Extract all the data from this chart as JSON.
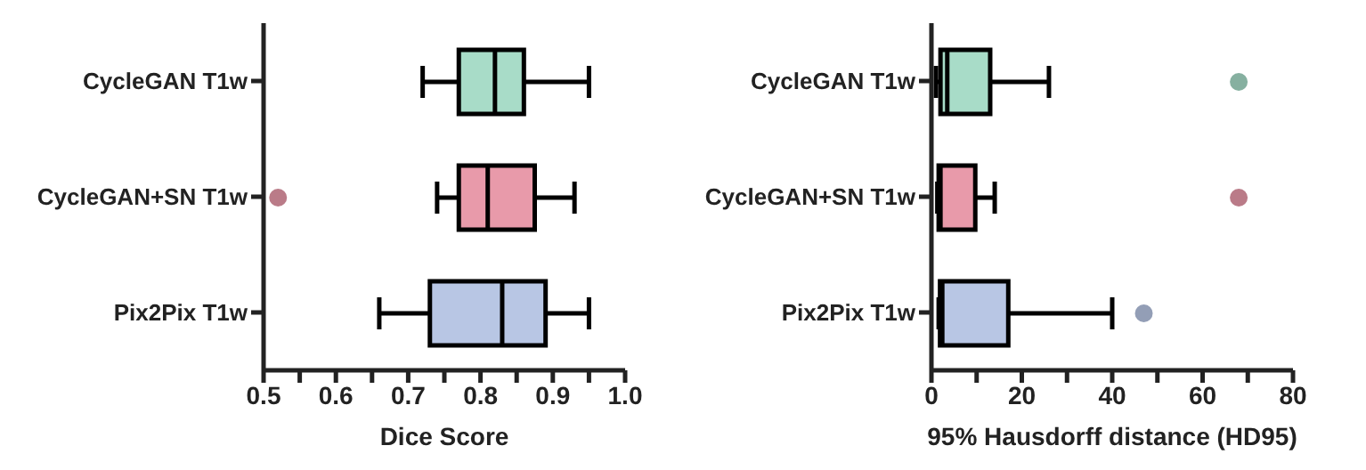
{
  "chart_data": [
    {
      "type": "box",
      "orientation": "horizontal",
      "xlabel": "Dice Score",
      "categories": [
        "CycleGAN T1w",
        "CycleGAN+SN T1w",
        "Pix2Pix T1w"
      ],
      "boxes": [
        {
          "low": 0.72,
          "q1": 0.77,
          "median": 0.82,
          "q3": 0.86,
          "high": 0.95
        },
        {
          "low": 0.74,
          "q1": 0.77,
          "median": 0.81,
          "q3": 0.875,
          "high": 0.93,
          "outliers": [
            0.52
          ]
        },
        {
          "low": 0.66,
          "q1": 0.73,
          "median": 0.83,
          "q3": 0.89,
          "high": 0.95
        }
      ],
      "colors": [
        "#a8dcc8",
        "#e89aaa",
        "#b8c6e4"
      ],
      "xlim": [
        0.5,
        1.0
      ],
      "xticks": [
        0.5,
        {
          "value": 0.55,
          "label": null
        },
        0.6,
        {
          "value": 0.65,
          "label": null
        },
        0.7,
        {
          "value": 0.75,
          "label": null
        },
        0.8,
        {
          "value": 0.85,
          "label": null
        },
        0.9,
        {
          "value": 0.95,
          "label": null
        },
        {
          "value": 1.0,
          "label": "1.0"
        }
      ],
      "grid": false,
      "legend": false
    },
    {
      "type": "box",
      "orientation": "horizontal",
      "xlabel": "95% Hausdorff distance (HD95)",
      "categories": [
        "CycleGAN T1w",
        "CycleGAN+SN T1w",
        "Pix2Pix T1w"
      ],
      "boxes": [
        {
          "low": 1,
          "q1": 2,
          "median": 3.5,
          "q3": 13,
          "high": 26,
          "outliers": [
            68
          ]
        },
        {
          "low": 1.3,
          "q1": 1.6,
          "median": 2,
          "q3": 9.7,
          "high": 14,
          "outliers": [
            68
          ]
        },
        {
          "low": 1.6,
          "q1": 1.9,
          "median": 2.4,
          "q3": 17,
          "high": 40,
          "outliers": [
            47
          ]
        }
      ],
      "colors": [
        "#a8dcc8",
        "#e89aaa",
        "#b8c6e4"
      ],
      "xlim": [
        0,
        80
      ],
      "xticks": [
        0,
        {
          "value": 10,
          "label": null
        },
        20,
        {
          "value": 30,
          "label": null
        },
        40,
        {
          "value": 50,
          "label": null
        },
        60,
        {
          "value": 70,
          "label": null
        },
        80
      ],
      "grid": false,
      "legend": false
    }
  ]
}
